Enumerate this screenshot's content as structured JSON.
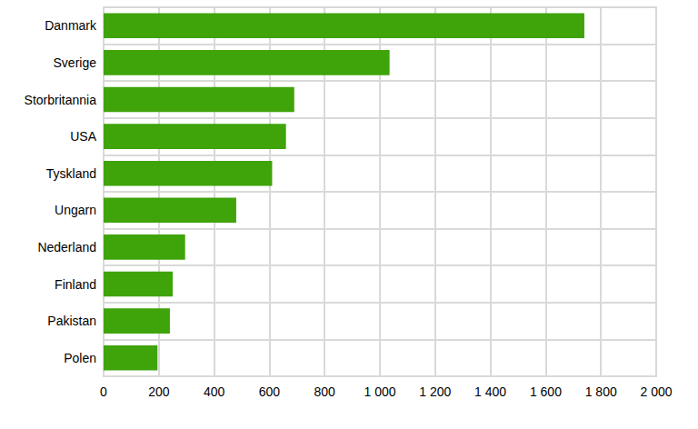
{
  "chart_data": {
    "type": "bar",
    "orientation": "horizontal",
    "categories": [
      "Danmark",
      "Sverige",
      "Storbritannia",
      "USA",
      "Tyskland",
      "Ungarn",
      "Nederland",
      "Finland",
      "Pakistan",
      "Polen"
    ],
    "values": [
      1740,
      1035,
      690,
      660,
      610,
      480,
      295,
      250,
      240,
      195
    ],
    "color": "#3fa30a",
    "xlim": [
      0,
      2000
    ],
    "xticks": [
      0,
      200,
      400,
      600,
      800,
      {
        "value": 1000,
        "label": "1 000"
      },
      {
        "value": 1200,
        "label": "1 200"
      },
      {
        "value": 1400,
        "label": "1 400"
      },
      {
        "value": 1600,
        "label": "1 600"
      },
      {
        "value": 1800,
        "label": "1 800"
      },
      {
        "value": 2000,
        "label": "2 000"
      }
    ],
    "grid": true
  }
}
